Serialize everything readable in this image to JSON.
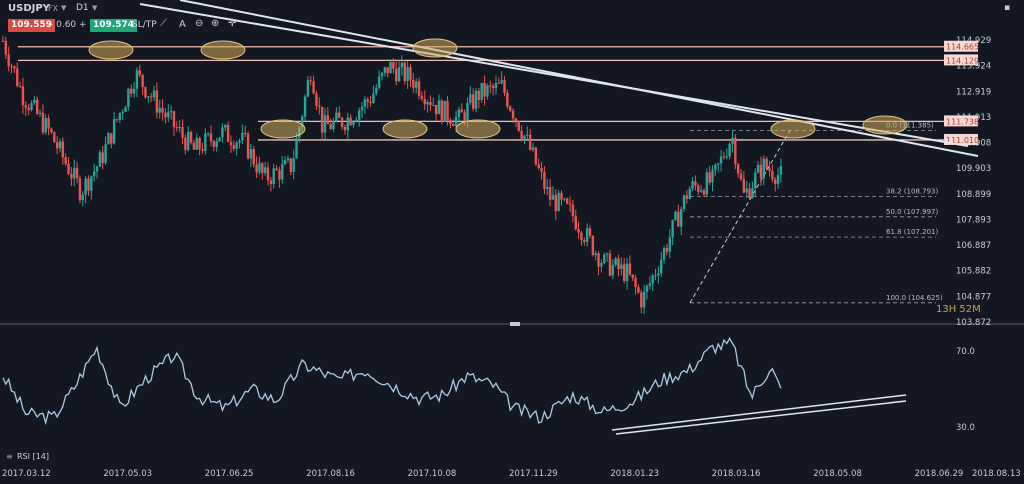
{
  "toolbar": {
    "symbol": "USDJPY",
    "symbol_type": "FX",
    "timeframe": "D1",
    "bid": "109.559",
    "spread": "- 0.60 +",
    "ask": "109.574",
    "sltp": "SL/TP"
  },
  "colors": {
    "background": "#131722",
    "up": "#26a69a",
    "down": "#ef5350",
    "rsi": "#a9cbe3",
    "trend": "#dfe6ee",
    "level": "#f0c0b6"
  },
  "timer": "13H 52M",
  "chart_data": [
    {
      "type": "candlestick",
      "symbol": "USDJPY",
      "timeframe": "D1",
      "y_ticks": [
        "114.929",
        "113.924",
        "112.919",
        "111.913",
        "110.908",
        "109.903",
        "108.899",
        "107.893",
        "106.887",
        "105.882",
        "104.877",
        "103.872"
      ],
      "ylim": [
        103.872,
        114.929
      ],
      "x_ticks": [
        "2017.03.12",
        "2017.05.03",
        "2017.06.25",
        "2017.08.16",
        "2017.10.08",
        "2017.11.29",
        "2018.01.23",
        "2018.03.16",
        "2018.05.08",
        "2018.06.29",
        "2018.08.13"
      ],
      "horizontal_levels": [
        {
          "label": "114.665",
          "value": 114.665
        },
        {
          "label": "114.129",
          "value": 114.129
        },
        {
          "label": "111.738",
          "value": 111.738
        },
        {
          "label": "111.010",
          "value": 111.01
        }
      ],
      "fibonacci": [
        {
          "label": "0.0 (111.385)",
          "value": 111.385
        },
        {
          "label": "38.2 (108.793)",
          "value": 108.793
        },
        {
          "label": "50.0 (107.997)",
          "value": 107.997
        },
        {
          "label": "61.8 (107.201)",
          "value": 107.201
        },
        {
          "label": "100.0 (104.625)",
          "value": 104.625
        }
      ],
      "close_path": [
        {
          "x": 0.0,
          "y": 114.9
        },
        {
          "x": 0.025,
          "y": 112.8
        },
        {
          "x": 0.06,
          "y": 111.3
        },
        {
          "x": 0.1,
          "y": 109.0
        },
        {
          "x": 0.125,
          "y": 110.2
        },
        {
          "x": 0.17,
          "y": 113.6
        },
        {
          "x": 0.205,
          "y": 112.1
        },
        {
          "x": 0.245,
          "y": 110.6
        },
        {
          "x": 0.28,
          "y": 111.3
        },
        {
          "x": 0.31,
          "y": 110.9
        },
        {
          "x": 0.335,
          "y": 109.5
        },
        {
          "x": 0.37,
          "y": 110.0
        },
        {
          "x": 0.395,
          "y": 113.8
        },
        {
          "x": 0.41,
          "y": 111.5
        },
        {
          "x": 0.44,
          "y": 111.8
        },
        {
          "x": 0.47,
          "y": 112.6
        },
        {
          "x": 0.495,
          "y": 113.9
        },
        {
          "x": 0.525,
          "y": 113.4
        },
        {
          "x": 0.56,
          "y": 112.2
        },
        {
          "x": 0.585,
          "y": 111.8
        },
        {
          "x": 0.61,
          "y": 112.8
        },
        {
          "x": 0.64,
          "y": 113.1
        },
        {
          "x": 0.67,
          "y": 111.1
        },
        {
          "x": 0.7,
          "y": 108.8
        },
        {
          "x": 0.73,
          "y": 108.1
        },
        {
          "x": 0.77,
          "y": 106.2
        },
        {
          "x": 0.8,
          "y": 105.8
        },
        {
          "x": 0.82,
          "y": 104.7
        },
        {
          "x": 0.85,
          "y": 106.8
        },
        {
          "x": 0.88,
          "y": 109.1
        },
        {
          "x": 0.91,
          "y": 109.4
        },
        {
          "x": 0.935,
          "y": 111.2
        },
        {
          "x": 0.95,
          "y": 108.8
        },
        {
          "x": 0.975,
          "y": 110.0
        },
        {
          "x": 1.0,
          "y": 109.56
        }
      ]
    },
    {
      "type": "line",
      "title": "RSI [14]",
      "y_ticks": [
        "70.0",
        "30.0"
      ],
      "ylim": [
        20,
        80
      ],
      "series": [
        {
          "name": "RSI [14]",
          "values": [
            {
              "x": 0.0,
              "y": 57
            },
            {
              "x": 0.03,
              "y": 37
            },
            {
              "x": 0.065,
              "y": 35
            },
            {
              "x": 0.09,
              "y": 50
            },
            {
              "x": 0.12,
              "y": 72
            },
            {
              "x": 0.15,
              "y": 40
            },
            {
              "x": 0.185,
              "y": 56
            },
            {
              "x": 0.22,
              "y": 68
            },
            {
              "x": 0.25,
              "y": 46
            },
            {
              "x": 0.285,
              "y": 40
            },
            {
              "x": 0.32,
              "y": 50
            },
            {
              "x": 0.35,
              "y": 44
            },
            {
              "x": 0.385,
              "y": 63
            },
            {
              "x": 0.43,
              "y": 55
            },
            {
              "x": 0.465,
              "y": 60
            },
            {
              "x": 0.5,
              "y": 52
            },
            {
              "x": 0.535,
              "y": 45
            },
            {
              "x": 0.565,
              "y": 47
            },
            {
              "x": 0.595,
              "y": 57
            },
            {
              "x": 0.63,
              "y": 52
            },
            {
              "x": 0.655,
              "y": 40
            },
            {
              "x": 0.69,
              "y": 35
            },
            {
              "x": 0.73,
              "y": 47
            },
            {
              "x": 0.77,
              "y": 38
            },
            {
              "x": 0.81,
              "y": 44
            },
            {
              "x": 0.845,
              "y": 55
            },
            {
              "x": 0.88,
              "y": 60
            },
            {
              "x": 0.91,
              "y": 72
            },
            {
              "x": 0.935,
              "y": 74
            },
            {
              "x": 0.96,
              "y": 46
            },
            {
              "x": 0.985,
              "y": 62
            },
            {
              "x": 1.0,
              "y": 47
            }
          ]
        }
      ]
    }
  ]
}
